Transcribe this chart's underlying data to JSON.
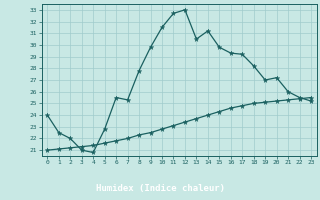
{
  "title": "",
  "xlabel": "Humidex (Indice chaleur)",
  "ylabel": "",
  "background_color": "#c8e8e4",
  "xlabel_bg_color": "#2a7a7a",
  "xlabel_text_color": "#ffffff",
  "grid_color": "#a0cccc",
  "line_color": "#1a6060",
  "x_values": [
    0,
    1,
    2,
    3,
    4,
    5,
    6,
    7,
    8,
    9,
    10,
    11,
    12,
    13,
    14,
    15,
    16,
    17,
    18,
    19,
    20,
    21,
    22,
    23
  ],
  "line1_y": [
    24.0,
    22.5,
    22.0,
    21.0,
    20.8,
    22.8,
    25.5,
    25.3,
    27.8,
    29.8,
    31.5,
    32.7,
    33.0,
    30.5,
    31.2,
    29.8,
    29.3,
    29.2,
    28.2,
    27.0,
    27.2,
    26.0,
    25.5,
    25.2
  ],
  "line2_y": [
    21.0,
    21.1,
    21.2,
    21.3,
    21.4,
    21.6,
    21.8,
    22.0,
    22.3,
    22.5,
    22.8,
    23.1,
    23.4,
    23.7,
    24.0,
    24.3,
    24.6,
    24.8,
    25.0,
    25.1,
    25.2,
    25.3,
    25.4,
    25.5
  ],
  "xlim": [
    -0.5,
    23.5
  ],
  "ylim": [
    20.5,
    33.5
  ],
  "yticks": [
    21,
    22,
    23,
    24,
    25,
    26,
    27,
    28,
    29,
    30,
    31,
    32,
    33
  ],
  "xticks": [
    0,
    1,
    2,
    3,
    4,
    5,
    6,
    7,
    8,
    9,
    10,
    11,
    12,
    13,
    14,
    15,
    16,
    17,
    18,
    19,
    20,
    21,
    22,
    23
  ]
}
